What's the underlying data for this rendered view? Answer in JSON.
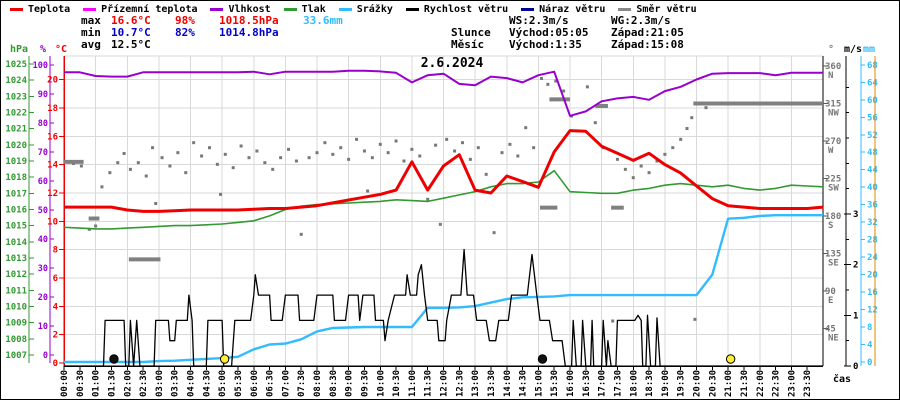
{
  "title": "2.6.2024",
  "colors": {
    "temp": "#ee0000",
    "ground_temp": "#ff00ff",
    "humidity": "#9900cc",
    "pressure": "#339933",
    "precip": "#33bbff",
    "wind_speed": "#000000",
    "wind_gust": "#000099",
    "wind_dir": "#888888",
    "min_row": "#0000cc",
    "grid": "#d9d9d9",
    "orange_axis": "#dd8800",
    "sun": "#ffee33",
    "moon": "#111111"
  },
  "legend": [
    {
      "label": "Teplota",
      "color": "#ee0000"
    },
    {
      "label": "Přízemní teplota",
      "color": "#ff00ff"
    },
    {
      "label": "Vlhkost",
      "color": "#9900cc"
    },
    {
      "label": "Tlak",
      "color": "#339933"
    },
    {
      "label": "Srážky",
      "color": "#33bbff"
    },
    {
      "label": "Rychlost větru",
      "color": "#000000"
    },
    {
      "label": "Náraz větru",
      "color": "#000099"
    },
    {
      "label": "Směr větru",
      "color": "#888888"
    }
  ],
  "stats": {
    "max": {
      "label": "max",
      "temp": "16.6°C",
      "hum": "98%",
      "pres": "1018.5hPa",
      "precip": "33.6mm"
    },
    "min": {
      "label": "min",
      "temp": "10.7°C",
      "hum": "82%",
      "pres": "1014.8hPa"
    },
    "avg": {
      "label": "avg",
      "temp": "12.5°C"
    }
  },
  "info": {
    "ws": "WS:2.3m/s",
    "wg": "WG:2.3m/s",
    "sun_label": "Slunce",
    "sun_rise": "Východ:05:05",
    "sun_set": "Západ:21:05",
    "moon_label": "Měsíc",
    "moon_rise": "Východ:1:35",
    "moon_set": "Západ:15:08"
  },
  "axis_headers": {
    "hpa": "hPa",
    "pct": "%",
    "degc": "°C",
    "deg": "°",
    "ms": "m/s",
    "mm": "mm",
    "time": "čas"
  },
  "x_axis_times": [
    "00:00",
    "00:30",
    "01:00",
    "01:30",
    "02:00",
    "02:30",
    "03:00",
    "03:30",
    "04:00",
    "04:30",
    "05:00",
    "05:30",
    "06:00",
    "06:30",
    "07:00",
    "07:30",
    "08:00",
    "08:30",
    "09:00",
    "09:30",
    "10:00",
    "10:30",
    "11:00",
    "11:30",
    "12:00",
    "12:30",
    "13:00",
    "13:30",
    "14:00",
    "14:30",
    "15:00",
    "15:30",
    "16:00",
    "16:30",
    "17:00",
    "17:30",
    "18:00",
    "18:30",
    "19:00",
    "19:30",
    "20:00",
    "20:30",
    "21:00",
    "21:30",
    "22:00",
    "22:30",
    "23:00",
    "23:30"
  ],
  "dir_ticks": [
    [
      360,
      "N"
    ],
    [
      315,
      "NW"
    ],
    [
      270,
      "W"
    ],
    [
      225,
      "SW"
    ],
    [
      180,
      "S"
    ],
    [
      135,
      "SE"
    ],
    [
      90,
      "E"
    ],
    [
      45,
      "NE"
    ]
  ],
  "markers": [
    {
      "t": 1.58,
      "type": "moon",
      "event": "moonrise"
    },
    {
      "t": 5.08,
      "type": "sun",
      "event": "sunrise"
    },
    {
      "t": 15.13,
      "type": "moon",
      "event": "moonset"
    },
    {
      "t": 21.08,
      "type": "sun",
      "event": "sunset"
    }
  ],
  "chart_data": {
    "type": "line",
    "title": "2.6.2024",
    "x_unit": "hours",
    "x_range": [
      0,
      24
    ],
    "sample_step_h": 0.5,
    "axes": {
      "temp_c": {
        "range": [
          0,
          22
        ],
        "ticks_step": 2,
        "side": "left"
      },
      "humidity_pct": {
        "range": [
          0,
          100
        ],
        "ticks_step": 10,
        "side": "left"
      },
      "pressure_hpa": {
        "range": [
          1007,
          1025
        ],
        "ticks_step": 1,
        "side": "left"
      },
      "wind_ms": {
        "range": [
          0,
          6
        ],
        "labeled_ticks": [
          0,
          1,
          2,
          3
        ],
        "side": "right"
      },
      "precip_mm": {
        "range": [
          0,
          70
        ],
        "ticks_step": 4,
        "side": "right"
      },
      "direction_deg": {
        "range": [
          0,
          360
        ],
        "ticks_step": 45,
        "side": "right"
      }
    },
    "grid": true,
    "legend_position": "top",
    "series": [
      {
        "name": "Teplota",
        "unit": "°C",
        "axis": "temp_c",
        "color": "#ee0000",
        "values": [
          11.0,
          11.0,
          11.0,
          11.0,
          10.8,
          10.7,
          10.7,
          10.75,
          10.8,
          10.8,
          10.8,
          10.8,
          10.85,
          10.9,
          10.9,
          11.0,
          11.1,
          11.3,
          11.5,
          11.7,
          11.9,
          12.2,
          14.2,
          12.2,
          13.9,
          14.7,
          12.2,
          12.0,
          13.2,
          12.8,
          12.4,
          14.9,
          16.4,
          16.35,
          15.3,
          14.8,
          14.3,
          14.8,
          14.0,
          13.4,
          12.5,
          11.6,
          11.1,
          11.0,
          10.9,
          10.9,
          10.9,
          10.9,
          11.0
        ]
      },
      {
        "name": "Vlhkost",
        "unit": "%",
        "axis": "humidity_pct",
        "color": "#9900cc",
        "values": [
          97.5,
          97.5,
          96.2,
          96.0,
          96.0,
          97.5,
          97.5,
          97.5,
          97.5,
          97.5,
          97.5,
          97.5,
          97.7,
          96.8,
          97.7,
          97.7,
          97.7,
          97.7,
          98.0,
          98.0,
          97.8,
          97.3,
          94.0,
          96.5,
          97.0,
          93.5,
          93.0,
          96.0,
          95.5,
          94.0,
          96.5,
          97.7,
          82.5,
          84.0,
          87.5,
          88.5,
          89.0,
          88.0,
          91.0,
          92.5,
          95.0,
          97.0,
          97.2,
          97.2,
          97.2,
          96.5,
          97.3,
          97.3,
          97.3
        ]
      },
      {
        "name": "Tlak",
        "unit": "hPa",
        "axis": "pressure_hpa",
        "color": "#339933",
        "values": [
          1014.9,
          1014.85,
          1014.8,
          1014.8,
          1014.85,
          1014.9,
          1014.95,
          1015.0,
          1015.0,
          1015.05,
          1015.1,
          1015.2,
          1015.3,
          1015.6,
          1016.0,
          1016.2,
          1016.3,
          1016.35,
          1016.4,
          1016.45,
          1016.5,
          1016.6,
          1016.55,
          1016.5,
          1016.7,
          1016.9,
          1017.1,
          1017.4,
          1017.6,
          1017.6,
          1017.7,
          1018.4,
          1017.1,
          1017.05,
          1017.0,
          1017.0,
          1017.2,
          1017.3,
          1017.5,
          1017.6,
          1017.5,
          1017.4,
          1017.5,
          1017.3,
          1017.2,
          1017.3,
          1017.5,
          1017.45,
          1017.4
        ]
      },
      {
        "name": "Srážky",
        "unit": "mm",
        "axis": "precip_mm",
        "color": "#33bbff",
        "cumulative": true,
        "values": [
          0,
          0,
          0,
          0,
          0,
          0,
          0.2,
          0.3,
          0.5,
          0.7,
          0.9,
          1.2,
          2.9,
          4.0,
          4.2,
          5.2,
          7.0,
          7.8,
          7.9,
          8.0,
          8.0,
          8.0,
          8.0,
          12.4,
          12.4,
          12.5,
          12.8,
          13.6,
          14.4,
          14.8,
          14.9,
          15.0,
          15.3,
          15.3,
          15.3,
          15.3,
          15.3,
          15.3,
          15.3,
          15.3,
          15.3,
          20.0,
          32.8,
          33.0,
          33.4,
          33.6,
          33.6,
          33.6,
          33.6
        ]
      }
    ],
    "wind_speed": {
      "name": "Rychlost větru",
      "unit": "m/s",
      "axis": "wind_ms",
      "color": "#000000",
      "points": [
        [
          0,
          0
        ],
        [
          1.25,
          0
        ],
        [
          1.3,
          0.9
        ],
        [
          1.9,
          0.9
        ],
        [
          1.95,
          0
        ],
        [
          2.05,
          0
        ],
        [
          2.1,
          0.9
        ],
        [
          2.2,
          0
        ],
        [
          2.3,
          0.9
        ],
        [
          2.4,
          0
        ],
        [
          2.85,
          0
        ],
        [
          2.9,
          0.9
        ],
        [
          3.3,
          0.9
        ],
        [
          3.35,
          0.5
        ],
        [
          3.5,
          0.5
        ],
        [
          3.55,
          0.9
        ],
        [
          3.9,
          0.9
        ],
        [
          3.95,
          1.4
        ],
        [
          4.05,
          0.9
        ],
        [
          4.1,
          0
        ],
        [
          4.5,
          0
        ],
        [
          4.55,
          0.9
        ],
        [
          5.0,
          0.9
        ],
        [
          5.05,
          0
        ],
        [
          5.3,
          0
        ],
        [
          5.4,
          0.9
        ],
        [
          5.9,
          0.9
        ],
        [
          6.0,
          1.4
        ],
        [
          6.05,
          1.8
        ],
        [
          6.15,
          1.4
        ],
        [
          6.5,
          1.4
        ],
        [
          6.55,
          0.9
        ],
        [
          6.9,
          0.9
        ],
        [
          7.0,
          1.4
        ],
        [
          7.4,
          1.4
        ],
        [
          7.45,
          0.9
        ],
        [
          7.9,
          0.9
        ],
        [
          8.0,
          1.4
        ],
        [
          8.5,
          1.4
        ],
        [
          8.55,
          0.9
        ],
        [
          8.9,
          0.9
        ],
        [
          9.0,
          1.4
        ],
        [
          9.3,
          1.4
        ],
        [
          9.35,
          0.9
        ],
        [
          9.45,
          1.4
        ],
        [
          9.8,
          1.4
        ],
        [
          9.85,
          0.9
        ],
        [
          10.1,
          0.9
        ],
        [
          10.15,
          0.5
        ],
        [
          10.25,
          0.9
        ],
        [
          10.45,
          1.4
        ],
        [
          10.8,
          1.4
        ],
        [
          10.85,
          1.8
        ],
        [
          10.95,
          1.4
        ],
        [
          11.15,
          1.4
        ],
        [
          11.2,
          1.8
        ],
        [
          11.3,
          2.0
        ],
        [
          11.4,
          1.4
        ],
        [
          11.5,
          0.9
        ],
        [
          11.8,
          0.9
        ],
        [
          11.85,
          0.5
        ],
        [
          12.05,
          0.5
        ],
        [
          12.1,
          0.9
        ],
        [
          12.25,
          1.4
        ],
        [
          12.55,
          1.4
        ],
        [
          12.65,
          2.3
        ],
        [
          12.75,
          1.4
        ],
        [
          12.95,
          1.4
        ],
        [
          13.05,
          0.9
        ],
        [
          13.35,
          0.9
        ],
        [
          13.45,
          0.5
        ],
        [
          13.65,
          0.5
        ],
        [
          13.75,
          0.9
        ],
        [
          14.05,
          0.9
        ],
        [
          14.15,
          1.4
        ],
        [
          14.65,
          1.4
        ],
        [
          14.8,
          2.2
        ],
        [
          14.95,
          1.4
        ],
        [
          15.05,
          0.9
        ],
        [
          15.35,
          0.9
        ],
        [
          15.45,
          0.5
        ],
        [
          15.75,
          0.5
        ],
        [
          15.85,
          0
        ],
        [
          16.05,
          0
        ],
        [
          16.1,
          0.9
        ],
        [
          16.2,
          0
        ],
        [
          16.35,
          0
        ],
        [
          16.4,
          0.9
        ],
        [
          16.5,
          0
        ],
        [
          16.65,
          0
        ],
        [
          16.7,
          0.9
        ],
        [
          16.75,
          0
        ],
        [
          17.0,
          0
        ],
        [
          17.05,
          0.9
        ],
        [
          17.15,
          0
        ],
        [
          17.2,
          0.5
        ],
        [
          17.3,
          0
        ],
        [
          17.45,
          0
        ],
        [
          17.5,
          0.9
        ],
        [
          18.05,
          0.9
        ],
        [
          18.15,
          1.0
        ],
        [
          18.25,
          0.9
        ],
        [
          18.3,
          0
        ],
        [
          18.4,
          0
        ],
        [
          18.45,
          1.0
        ],
        [
          18.55,
          0
        ],
        [
          18.7,
          0
        ],
        [
          18.75,
          0.95
        ],
        [
          18.85,
          0
        ],
        [
          24,
          0
        ]
      ]
    },
    "wind_direction": {
      "name": "Směr větru",
      "unit": "deg",
      "axis": "direction_deg",
      "color": "#888888",
      "points": [
        [
          0.3,
          243
        ],
        [
          0.55,
          240
        ],
        [
          0.8,
          164
        ],
        [
          1.0,
          168
        ],
        [
          1.2,
          215
        ],
        [
          1.45,
          232
        ],
        [
          1.7,
          244
        ],
        [
          1.9,
          255
        ],
        [
          2.1,
          236
        ],
        [
          2.35,
          244
        ],
        [
          2.6,
          228
        ],
        [
          2.8,
          262
        ],
        [
          2.9,
          195
        ],
        [
          3.1,
          250
        ],
        [
          3.35,
          240
        ],
        [
          3.6,
          256
        ],
        [
          3.85,
          232
        ],
        [
          4.1,
          268
        ],
        [
          4.35,
          252
        ],
        [
          4.6,
          262
        ],
        [
          4.85,
          242
        ],
        [
          4.95,
          206
        ],
        [
          5.1,
          254
        ],
        [
          5.35,
          238
        ],
        [
          5.6,
          264
        ],
        [
          5.85,
          250
        ],
        [
          6.1,
          258
        ],
        [
          6.35,
          244
        ],
        [
          6.6,
          236
        ],
        [
          6.85,
          250
        ],
        [
          7.1,
          260
        ],
        [
          7.35,
          246
        ],
        [
          7.5,
          158
        ],
        [
          7.75,
          250
        ],
        [
          8.0,
          256
        ],
        [
          8.25,
          268
        ],
        [
          8.5,
          254
        ],
        [
          8.75,
          262
        ],
        [
          9.0,
          248
        ],
        [
          9.25,
          272
        ],
        [
          9.5,
          258
        ],
        [
          9.6,
          210
        ],
        [
          9.75,
          250
        ],
        [
          10.0,
          266
        ],
        [
          10.25,
          256
        ],
        [
          10.5,
          270
        ],
        [
          10.75,
          246
        ],
        [
          11.0,
          260
        ],
        [
          11.25,
          252
        ],
        [
          11.5,
          200
        ],
        [
          11.75,
          265
        ],
        [
          11.9,
          170
        ],
        [
          12.1,
          272
        ],
        [
          12.35,
          258
        ],
        [
          12.6,
          268
        ],
        [
          12.85,
          248
        ],
        [
          13.1,
          262
        ],
        [
          13.35,
          230
        ],
        [
          13.6,
          160
        ],
        [
          13.85,
          256
        ],
        [
          14.1,
          266
        ],
        [
          14.35,
          252
        ],
        [
          14.6,
          286
        ],
        [
          14.85,
          262
        ],
        [
          15.1,
          345
        ],
        [
          15.3,
          338
        ],
        [
          15.55,
          342
        ],
        [
          15.8,
          330
        ],
        [
          16.05,
          300
        ],
        [
          16.3,
          282
        ],
        [
          16.55,
          335
        ],
        [
          16.8,
          292
        ],
        [
          17.05,
          262
        ],
        [
          17.35,
          54
        ],
        [
          17.5,
          248
        ],
        [
          17.75,
          236
        ],
        [
          18.0,
          226
        ],
        [
          18.25,
          240
        ],
        [
          18.5,
          232
        ],
        [
          18.75,
          246
        ],
        [
          19.0,
          254
        ],
        [
          19.25,
          262
        ],
        [
          19.5,
          272
        ],
        [
          19.7,
          285
        ],
        [
          19.85,
          298
        ],
        [
          19.95,
          56
        ],
        [
          20.3,
          310
        ]
      ],
      "bars": [
        [
          0.0,
          0.62,
          245
        ],
        [
          0.78,
          1.12,
          177
        ],
        [
          2.05,
          3.05,
          128
        ],
        [
          15.05,
          15.6,
          190
        ],
        [
          15.35,
          16.0,
          320
        ],
        [
          16.8,
          17.2,
          312
        ],
        [
          17.3,
          17.7,
          190
        ],
        [
          19.9,
          24.0,
          315
        ]
      ]
    }
  }
}
